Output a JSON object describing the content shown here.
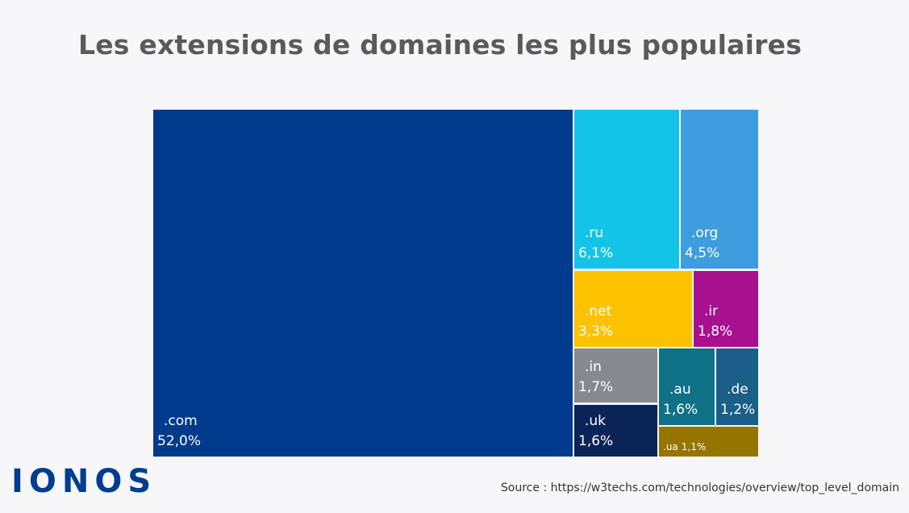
{
  "chart_data": {
    "type": "treemap",
    "title": "Les extensions de domaines les plus populaires",
    "unit": "%",
    "items": [
      {
        "label": ".com",
        "value": 52.0,
        "value_label": "52,0%",
        "color": "#003a8c"
      },
      {
        "label": ".ru",
        "value": 6.1,
        "value_label": "6,1%",
        "color": "#13c4e8"
      },
      {
        "label": ".org",
        "value": 4.5,
        "value_label": "4,5%",
        "color": "#3d9ddf"
      },
      {
        "label": ".net",
        "value": 3.3,
        "value_label": "3,3%",
        "color": "#fcc200"
      },
      {
        "label": ".ir",
        "value": 1.8,
        "value_label": "1,8%",
        "color": "#a8108f"
      },
      {
        "label": ".in",
        "value": 1.7,
        "value_label": "1,7%",
        "color": "#868a8e"
      },
      {
        "label": ".uk",
        "value": 1.6,
        "value_label": "1,6%",
        "color": "#0b2458"
      },
      {
        "label": ".au",
        "value": 1.6,
        "value_label": "1,6%",
        "color": "#0e7186"
      },
      {
        "label": ".de",
        "value": 1.2,
        "value_label": "1,2%",
        "color": "#195f87"
      },
      {
        "label": ".ua",
        "value": 1.1,
        "value_label": "1,1%",
        "color": "#957500"
      }
    ]
  },
  "brand": {
    "logo_text": "IONOS"
  },
  "source": "Source : https://w3techs.com/technologies/overview/top_level_domain"
}
